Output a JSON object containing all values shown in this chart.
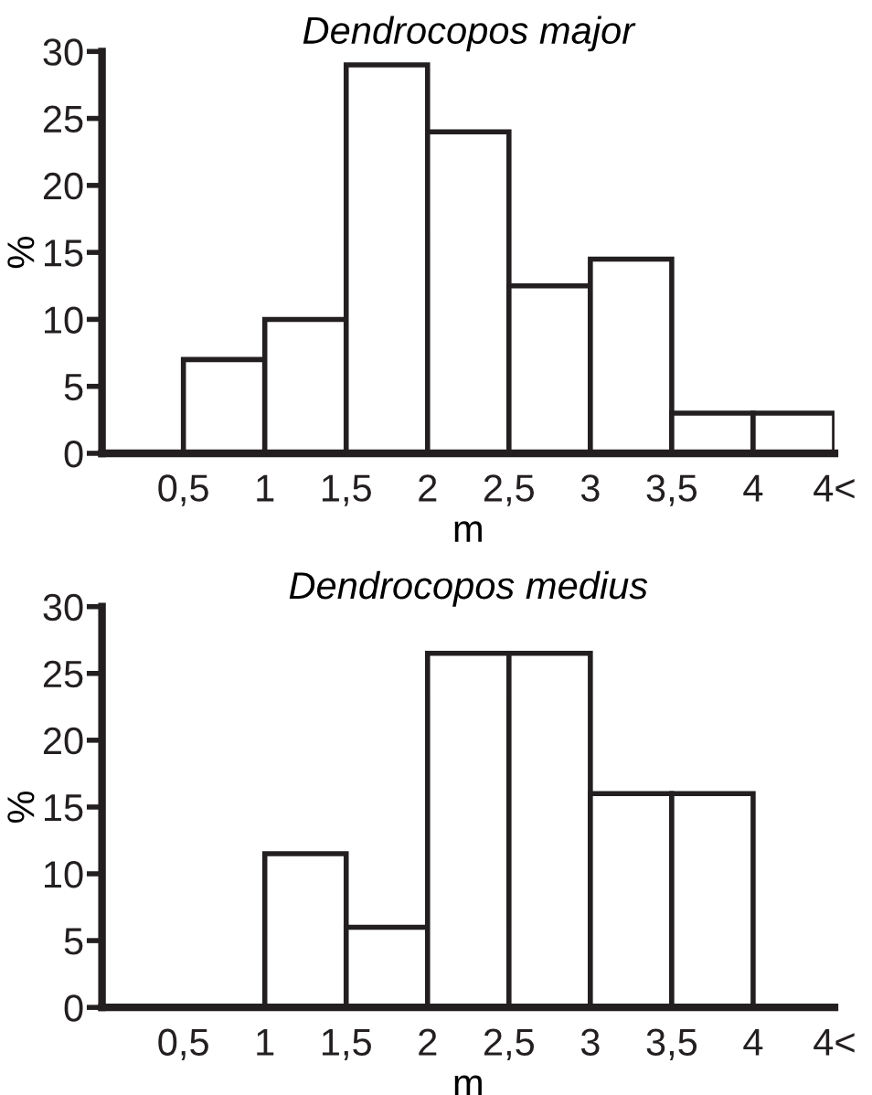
{
  "chart_data": [
    {
      "type": "histogram",
      "title": "Dendrocopos major",
      "xlabel": "m",
      "ylabel": "%",
      "bins": [
        0.5,
        1,
        1.5,
        2,
        2.5,
        3,
        3.5,
        4,
        4.5
      ],
      "values": [
        7,
        10,
        29,
        24,
        12.5,
        14.5,
        3,
        3
      ],
      "color": "#ffffff",
      "xlim": [
        0,
        4.5
      ],
      "xticks": [
        {
          "value": 0.5,
          "label": "0,5"
        },
        1,
        {
          "value": 1.5,
          "label": "1,5"
        },
        2,
        {
          "value": 2.5,
          "label": "2,5"
        },
        3,
        {
          "value": 3.5,
          "label": "3,5"
        },
        4,
        {
          "value": 4.5,
          "label": "4<"
        }
      ],
      "ylim": [
        0,
        30
      ],
      "yticks": [
        0,
        5,
        10,
        15,
        20,
        25,
        30
      ],
      "grid": false,
      "legend": false
    },
    {
      "type": "histogram",
      "title": "Dendrocopos medius",
      "xlabel": "m",
      "ylabel": "%",
      "bins": [
        1,
        1.5,
        2,
        2.5,
        3,
        3.5,
        4
      ],
      "values": [
        11.5,
        6,
        26.5,
        26.5,
        16,
        16
      ],
      "color": "#ffffff",
      "xlim": [
        0,
        4.5
      ],
      "xticks": [
        {
          "value": 0.5,
          "label": "0,5"
        },
        1,
        {
          "value": 1.5,
          "label": "1,5"
        },
        2,
        {
          "value": 2.5,
          "label": "2,5"
        },
        3,
        {
          "value": 3.5,
          "label": "3,5"
        },
        4,
        {
          "value": 4.5,
          "label": "4<"
        }
      ],
      "ylim": [
        0,
        30
      ],
      "yticks": [
        0,
        5,
        10,
        15,
        20,
        25,
        30
      ],
      "grid": false,
      "legend": false
    }
  ]
}
